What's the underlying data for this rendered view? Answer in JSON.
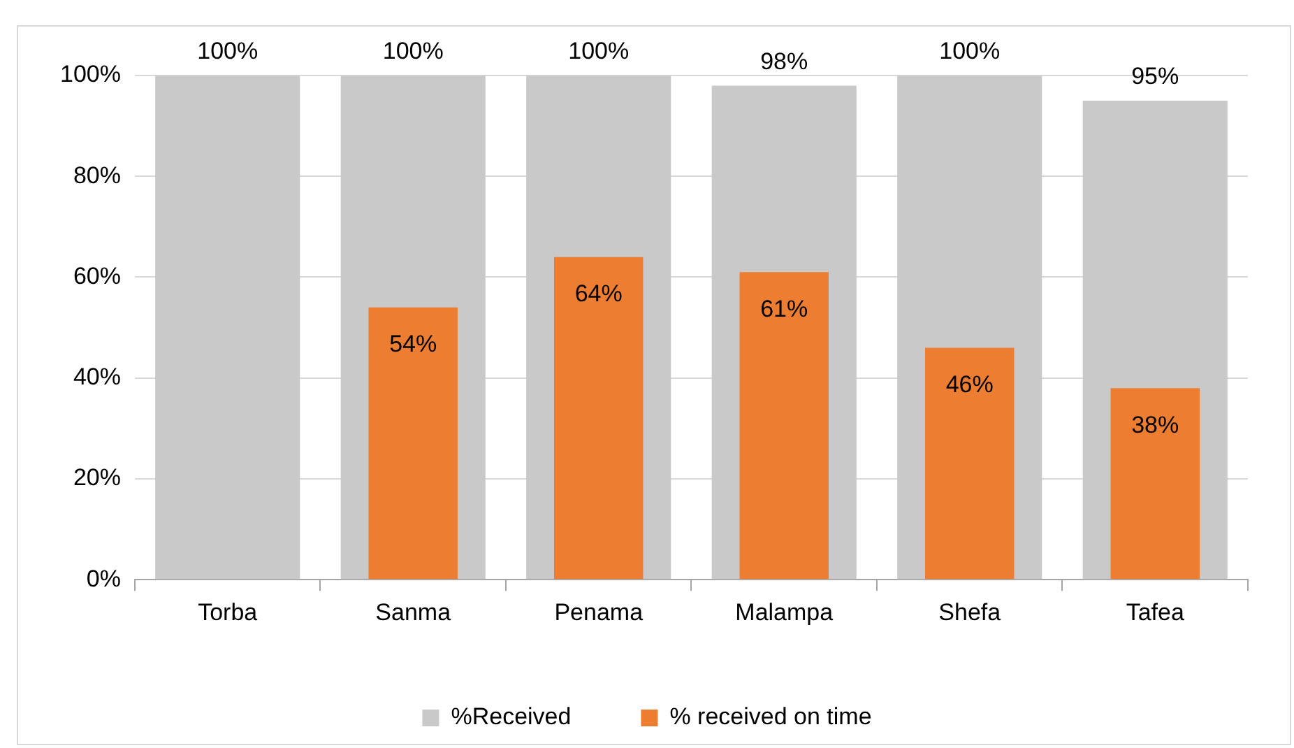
{
  "chart_data": {
    "type": "bar",
    "categories": [
      "Torba",
      "Sanma",
      "Penama",
      "Malampa",
      "Shefa",
      "Tafea"
    ],
    "series": [
      {
        "name": "%Received",
        "color": "#c9c9c9",
        "values": [
          100,
          100,
          100,
          98,
          100,
          95
        ],
        "value_labels": [
          "100%",
          "100%",
          "100%",
          "98%",
          "100%",
          "95%"
        ]
      },
      {
        "name": "% received on time",
        "color": "#ed7d31",
        "values": [
          null,
          54,
          64,
          61,
          46,
          38
        ],
        "value_labels": [
          null,
          "54%",
          "64%",
          "61%",
          "46%",
          "38%"
        ]
      }
    ],
    "ylim": [
      0,
      100
    ],
    "yticks": [
      {
        "value": 0,
        "label": "0%"
      },
      {
        "value": 20,
        "label": "20%"
      },
      {
        "value": 40,
        "label": "40%"
      },
      {
        "value": 60,
        "label": "60%"
      },
      {
        "value": 80,
        "label": "80%"
      },
      {
        "value": 100,
        "label": "100%"
      }
    ],
    "grid": "y",
    "legend": "bottom"
  }
}
